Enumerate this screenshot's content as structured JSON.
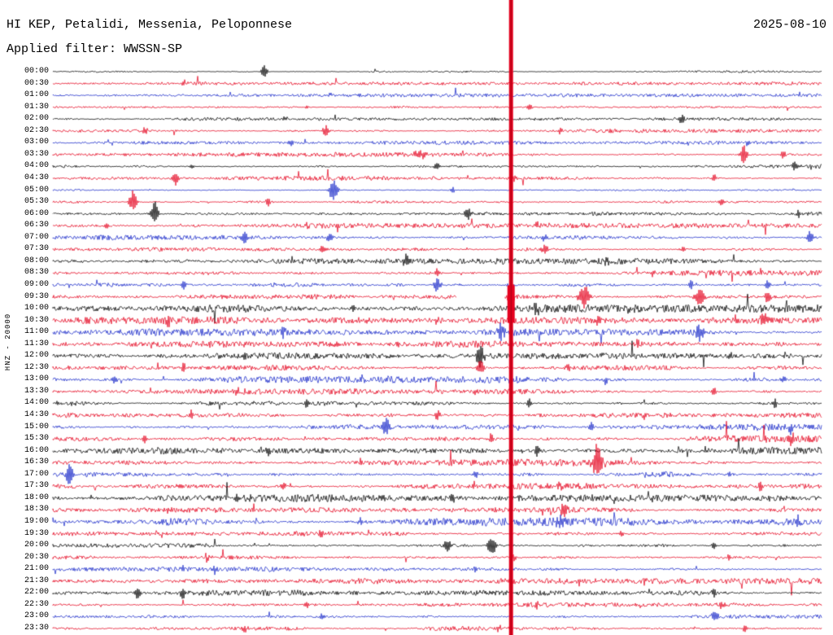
{
  "header": {
    "station_title": "HI KEP, Petalidi, Messenia, Peloponnese",
    "date": "2025-08-10",
    "filter_label": "Applied filter: WWSSN-SP"
  },
  "y_axis_label": "HNZ - 20000",
  "chart_data": {
    "type": "line",
    "title": "HI KEP, Petalidi, Messenia, Peloponnese",
    "date": "2025-08-10",
    "filter": "WWSSN-SP",
    "channel": "HNZ",
    "scale": 20000,
    "row_interval_minutes": 30,
    "background": "#ffffff",
    "label_color": "#000000",
    "trace_colors_cycle": [
      "#000000",
      "#e4001e",
      "#1828c8",
      "#e4001e"
    ],
    "major_event": {
      "row": "09:30",
      "x_frac": 0.596,
      "color": "#e4001e",
      "clipped_full_height": true
    },
    "rows": [
      {
        "time": "00:00",
        "noise": 0.9,
        "events": [
          {
            "x": 0.275,
            "a": 10,
            "w": 2.5
          }
        ]
      },
      {
        "time": "00:30",
        "noise": 1.0,
        "events": [
          {
            "x": 0.17,
            "a": 4,
            "w": 2
          }
        ]
      },
      {
        "time": "01:00",
        "noise": 1.0,
        "events": [
          {
            "x": 0.36,
            "a": 3,
            "w": 2
          }
        ]
      },
      {
        "time": "01:30",
        "noise": 1.1,
        "events": [
          {
            "x": 0.33,
            "a": 3,
            "w": 2
          },
          {
            "x": 0.62,
            "a": 4,
            "w": 2
          }
        ]
      },
      {
        "time": "02:00",
        "noise": 1.0,
        "events": [
          {
            "x": 0.3,
            "a": 3,
            "w": 2
          },
          {
            "x": 0.817,
            "a": 8,
            "w": 2.5
          }
        ]
      },
      {
        "time": "02:30",
        "noise": 1.2,
        "events": [
          {
            "x": 0.12,
            "a": 5,
            "w": 2
          },
          {
            "x": 0.355,
            "a": 7,
            "w": 3
          },
          {
            "x": 0.66,
            "a": 4,
            "w": 2
          }
        ]
      },
      {
        "time": "03:00",
        "noise": 1.1,
        "events": [
          {
            "x": 0.31,
            "a": 4,
            "w": 2
          },
          {
            "x": 0.905,
            "a": 5,
            "w": 2
          }
        ]
      },
      {
        "time": "03:30",
        "noise": 1.4,
        "events": [
          {
            "x": 0.48,
            "a": 5,
            "w": 6
          },
          {
            "x": 0.899,
            "a": 12,
            "w": 3
          },
          {
            "x": 0.95,
            "a": 6,
            "w": 2
          }
        ]
      },
      {
        "time": "04:00",
        "noise": 1.3,
        "events": [
          {
            "x": 0.18,
            "a": 4,
            "w": 2
          },
          {
            "x": 0.5,
            "a": 5,
            "w": 3
          },
          {
            "x": 0.965,
            "a": 5,
            "w": 2
          }
        ]
      },
      {
        "time": "04:30",
        "noise": 1.4,
        "events": [
          {
            "x": 0.16,
            "a": 8,
            "w": 2.5
          },
          {
            "x": 0.6,
            "a": 5,
            "w": 2
          },
          {
            "x": 0.86,
            "a": 5,
            "w": 2
          }
        ]
      },
      {
        "time": "05:00",
        "noise": 1.3,
        "events": [
          {
            "x": 0.365,
            "a": 16,
            "w": 3.5
          },
          {
            "x": 0.52,
            "a": 4,
            "w": 2
          }
        ]
      },
      {
        "time": "05:30",
        "noise": 1.5,
        "events": [
          {
            "x": 0.104,
            "a": 14,
            "w": 3
          },
          {
            "x": 0.28,
            "a": 6,
            "w": 2
          },
          {
            "x": 0.87,
            "a": 5,
            "w": 2
          }
        ]
      },
      {
        "time": "06:00",
        "noise": 1.5,
        "events": [
          {
            "x": 0.132,
            "a": 16,
            "w": 3
          },
          {
            "x": 0.54,
            "a": 8,
            "w": 3
          },
          {
            "x": 0.97,
            "a": 6,
            "w": 2
          }
        ]
      },
      {
        "time": "06:30",
        "noise": 1.5,
        "events": [
          {
            "x": 0.07,
            "a": 4,
            "w": 2
          },
          {
            "x": 0.33,
            "a": 5,
            "w": 2
          },
          {
            "x": 0.63,
            "a": 5,
            "w": 2
          },
          {
            "x": 0.9,
            "a": 4,
            "w": 2
          }
        ]
      },
      {
        "time": "07:00",
        "noise": 2.0,
        "events": [
          {
            "x": 0.25,
            "a": 7,
            "w": 3
          },
          {
            "x": 0.36,
            "a": 6,
            "w": 3
          },
          {
            "x": 0.64,
            "a": 5,
            "w": 2
          },
          {
            "x": 0.985,
            "a": 8,
            "w": 3
          }
        ]
      },
      {
        "time": "07:30",
        "noise": 1.8,
        "events": [
          {
            "x": 0.35,
            "a": 5,
            "w": 2
          },
          {
            "x": 0.64,
            "a": 6,
            "w": 3
          },
          {
            "x": 0.82,
            "a": 4,
            "w": 2
          }
        ]
      },
      {
        "time": "08:00",
        "noise": 1.8,
        "events": [
          {
            "x": 0.31,
            "a": 5,
            "w": 2
          },
          {
            "x": 0.46,
            "a": 8,
            "w": 3
          },
          {
            "x": 0.72,
            "a": 5,
            "w": 2
          }
        ]
      },
      {
        "time": "08:30",
        "noise": 1.8,
        "events": [
          {
            "x": 0.5,
            "a": 6,
            "w": 2
          },
          {
            "x": 0.78,
            "a": 5,
            "w": 2
          },
          {
            "x": 0.92,
            "a": 5,
            "w": 2
          }
        ]
      },
      {
        "time": "09:00",
        "noise": 2.4,
        "events": [
          {
            "x": 0.17,
            "a": 6,
            "w": 2
          },
          {
            "x": 0.5,
            "a": 9,
            "w": 3
          },
          {
            "x": 0.83,
            "a": 6,
            "w": 2
          },
          {
            "x": 0.93,
            "a": 7,
            "w": 2
          }
        ]
      },
      {
        "time": "09:30",
        "noise": 2.2,
        "big": true,
        "gap": [
          0.525,
          0.588
        ],
        "events": [
          {
            "x": 0.596,
            "a": 55,
            "w": 2
          },
          {
            "x": 0.691,
            "a": 14,
            "w": 5
          },
          {
            "x": 0.841,
            "a": 12,
            "w": 4
          },
          {
            "x": 0.93,
            "a": 8,
            "w": 3
          }
        ]
      },
      {
        "time": "10:00",
        "noise": 2.3,
        "events": [
          {
            "x": 0.39,
            "a": 5,
            "w": 2
          },
          {
            "x": 0.63,
            "a": 6,
            "w": 3
          },
          {
            "x": 0.75,
            "a": 5,
            "w": 2
          }
        ]
      },
      {
        "time": "10:30",
        "noise": 2.3,
        "events": [
          {
            "x": 0.15,
            "a": 5,
            "w": 2
          },
          {
            "x": 0.5,
            "a": 6,
            "w": 2
          },
          {
            "x": 0.71,
            "a": 8,
            "w": 3
          },
          {
            "x": 0.925,
            "a": 9,
            "w": 3
          }
        ]
      },
      {
        "time": "11:00",
        "noise": 2.2,
        "events": [
          {
            "x": 0.3,
            "a": 5,
            "w": 2
          },
          {
            "x": 0.582,
            "a": 10,
            "w": 3
          },
          {
            "x": 0.841,
            "a": 12,
            "w": 3.5
          }
        ]
      },
      {
        "time": "11:30",
        "noise": 2.0,
        "events": [
          {
            "x": 0.13,
            "a": 5,
            "w": 2
          },
          {
            "x": 0.45,
            "a": 5,
            "w": 2
          },
          {
            "x": 0.76,
            "a": 5,
            "w": 2
          }
        ]
      },
      {
        "time": "12:00",
        "noise": 2.0,
        "events": [
          {
            "x": 0.25,
            "a": 5,
            "w": 2
          },
          {
            "x": 0.556,
            "a": 14,
            "w": 3.5
          },
          {
            "x": 0.88,
            "a": 5,
            "w": 2
          }
        ]
      },
      {
        "time": "12:30",
        "noise": 2.2,
        "events": [
          {
            "x": 0.17,
            "a": 6,
            "w": 2
          },
          {
            "x": 0.556,
            "a": 10,
            "w": 3
          },
          {
            "x": 0.67,
            "a": 5,
            "w": 2
          }
        ]
      },
      {
        "time": "13:00",
        "noise": 2.2,
        "events": [
          {
            "x": 0.08,
            "a": 5,
            "w": 2
          },
          {
            "x": 0.4,
            "a": 6,
            "w": 2
          },
          {
            "x": 0.72,
            "a": 5,
            "w": 2
          },
          {
            "x": 0.95,
            "a": 6,
            "w": 2
          }
        ]
      },
      {
        "time": "13:30",
        "noise": 2.0,
        "events": [
          {
            "x": 0.24,
            "a": 5,
            "w": 2
          },
          {
            "x": 0.55,
            "a": 5,
            "w": 2
          },
          {
            "x": 0.86,
            "a": 6,
            "w": 2
          }
        ]
      },
      {
        "time": "14:00",
        "noise": 2.4,
        "events": [
          {
            "x": 0.33,
            "a": 6,
            "w": 2
          },
          {
            "x": 0.62,
            "a": 6,
            "w": 2
          },
          {
            "x": 0.94,
            "a": 7,
            "w": 2
          }
        ]
      },
      {
        "time": "14:30",
        "noise": 2.2,
        "events": [
          {
            "x": 0.18,
            "a": 6,
            "w": 2
          },
          {
            "x": 0.5,
            "a": 7,
            "w": 3
          },
          {
            "x": 0.77,
            "a": 6,
            "w": 2
          }
        ]
      },
      {
        "time": "15:00",
        "noise": 2.2,
        "events": [
          {
            "x": 0.434,
            "a": 12,
            "w": 3
          },
          {
            "x": 0.7,
            "a": 6,
            "w": 2
          },
          {
            "x": 0.96,
            "a": 8,
            "w": 2.5
          }
        ]
      },
      {
        "time": "15:30",
        "noise": 2.2,
        "events": [
          {
            "x": 0.12,
            "a": 5,
            "w": 2
          },
          {
            "x": 0.57,
            "a": 6,
            "w": 2
          },
          {
            "x": 0.96,
            "a": 8,
            "w": 3
          }
        ]
      },
      {
        "time": "16:00",
        "noise": 2.2,
        "events": [
          {
            "x": 0.28,
            "a": 5,
            "w": 2
          },
          {
            "x": 0.63,
            "a": 6,
            "w": 2
          },
          {
            "x": 0.85,
            "a": 5,
            "w": 2
          }
        ]
      },
      {
        "time": "16:30",
        "noise": 2.2,
        "big": true,
        "events": [
          {
            "x": 0.4,
            "a": 5,
            "w": 2
          },
          {
            "x": 0.709,
            "a": 24,
            "w": 4
          }
        ]
      },
      {
        "time": "17:00",
        "noise": 2.4,
        "events": [
          {
            "x": 0.021,
            "a": 14,
            "w": 3
          },
          {
            "x": 0.55,
            "a": 6,
            "w": 2
          },
          {
            "x": 0.88,
            "a": 5,
            "w": 2
          }
        ]
      },
      {
        "time": "17:30",
        "noise": 2.2,
        "events": [
          {
            "x": 0.3,
            "a": 5,
            "w": 2
          },
          {
            "x": 0.66,
            "a": 6,
            "w": 2
          },
          {
            "x": 0.92,
            "a": 5,
            "w": 2
          }
        ]
      },
      {
        "time": "18:00",
        "noise": 2.2,
        "events": [
          {
            "x": 0.24,
            "a": 5,
            "w": 2
          },
          {
            "x": 0.52,
            "a": 5,
            "w": 2
          },
          {
            "x": 0.78,
            "a": 5,
            "w": 2
          }
        ]
      },
      {
        "time": "18:30",
        "noise": 2.2,
        "events": [
          {
            "x": 0.15,
            "a": 5,
            "w": 2
          },
          {
            "x": 0.665,
            "a": 10,
            "w": 3
          }
        ]
      },
      {
        "time": "19:00",
        "noise": 2.4,
        "events": [
          {
            "x": 0.4,
            "a": 5,
            "w": 2
          },
          {
            "x": 0.66,
            "a": 8,
            "w": 3
          },
          {
            "x": 0.97,
            "a": 8,
            "w": 2.5
          }
        ]
      },
      {
        "time": "19:30",
        "noise": 2.0,
        "events": [
          {
            "x": 0.35,
            "a": 5,
            "w": 2
          },
          {
            "x": 0.74,
            "a": 5,
            "w": 2
          }
        ]
      },
      {
        "time": "20:00",
        "noise": 2.2,
        "events": [
          {
            "x": 0.513,
            "a": 8,
            "w": 3
          },
          {
            "x": 0.571,
            "a": 14,
            "w": 3.5
          },
          {
            "x": 0.86,
            "a": 5,
            "w": 2
          }
        ]
      },
      {
        "time": "20:30",
        "noise": 2.0,
        "events": [
          {
            "x": 0.2,
            "a": 5,
            "w": 2
          },
          {
            "x": 0.6,
            "a": 5,
            "w": 2
          },
          {
            "x": 0.88,
            "a": 5,
            "w": 2
          }
        ]
      },
      {
        "time": "21:00",
        "noise": 1.8,
        "events": [
          {
            "x": 0.21,
            "a": 6,
            "w": 2
          },
          {
            "x": 0.55,
            "a": 4,
            "w": 2
          }
        ]
      },
      {
        "time": "21:30",
        "noise": 1.8,
        "events": [
          {
            "x": 0.42,
            "a": 4,
            "w": 2
          },
          {
            "x": 0.77,
            "a": 4,
            "w": 2
          }
        ]
      },
      {
        "time": "22:00",
        "noise": 1.8,
        "events": [
          {
            "x": 0.111,
            "a": 8,
            "w": 2.5
          },
          {
            "x": 0.169,
            "a": 8,
            "w": 2.5
          },
          {
            "x": 0.86,
            "a": 6,
            "w": 2
          }
        ]
      },
      {
        "time": "22:30",
        "noise": 1.8,
        "events": [
          {
            "x": 0.33,
            "a": 5,
            "w": 2
          },
          {
            "x": 0.63,
            "a": 4,
            "w": 2
          },
          {
            "x": 0.87,
            "a": 5,
            "w": 2
          }
        ]
      },
      {
        "time": "23:00",
        "noise": 1.8,
        "events": [
          {
            "x": 0.35,
            "a": 4,
            "w": 2
          },
          {
            "x": 0.862,
            "a": 9,
            "w": 3
          }
        ]
      },
      {
        "time": "23:30",
        "noise": 1.6,
        "events": [
          {
            "x": 0.25,
            "a": 4,
            "w": 2
          },
          {
            "x": 0.58,
            "a": 4,
            "w": 2
          },
          {
            "x": 0.9,
            "a": 5,
            "w": 2
          }
        ]
      }
    ]
  }
}
